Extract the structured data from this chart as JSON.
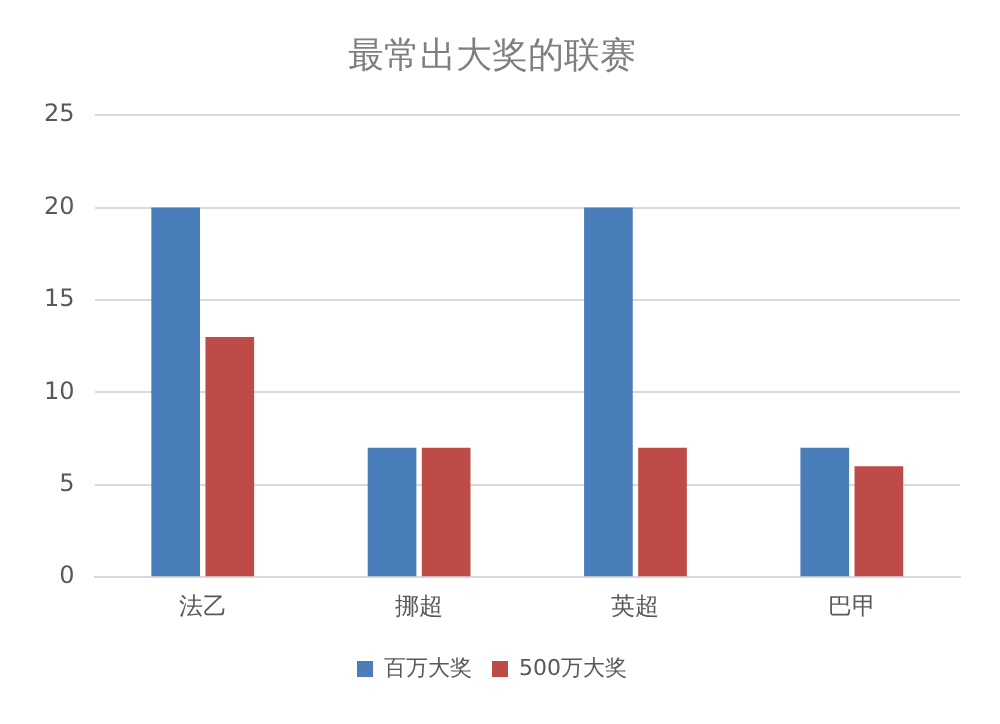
{
  "chart_data": {
    "type": "bar",
    "title": "最常出大奖的联赛",
    "categories": [
      "法乙",
      "挪超",
      "英超",
      "巴甲"
    ],
    "series": [
      {
        "name": "百万大奖",
        "color": "#4a7ebb",
        "values": [
          20,
          7,
          20,
          7
        ]
      },
      {
        "name": "500万大奖",
        "color": "#be4b48",
        "values": [
          13,
          7,
          7,
          6
        ]
      }
    ],
    "ylim": [
      0,
      25
    ],
    "yticks": [
      0,
      5,
      10,
      15,
      20,
      25
    ],
    "grid": "y",
    "legend": "bottom"
  }
}
